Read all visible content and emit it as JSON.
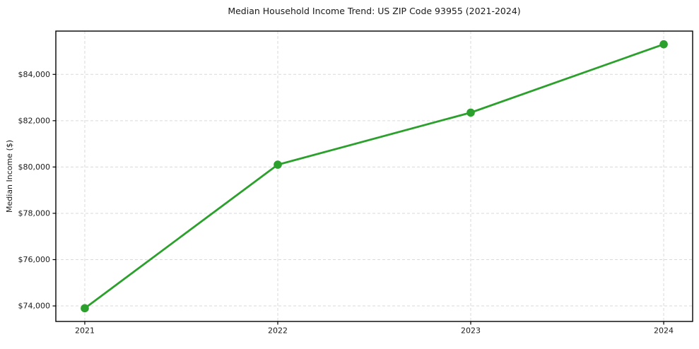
{
  "chart_data": {
    "type": "line",
    "title": "Median Household Income Trend: US ZIP Code 93955 (2021-2024)",
    "ylabel": "Median Income ($)",
    "xlabel": "",
    "categories": [
      2021,
      2022,
      2023,
      2024
    ],
    "x_tick_labels": [
      "2021",
      "2022",
      "2023",
      "2024"
    ],
    "values": [
      73900,
      80100,
      82350,
      85300
    ],
    "y_ticks": [
      74000,
      76000,
      78000,
      80000,
      82000,
      84000
    ],
    "y_tick_labels": [
      "$74,000",
      "$76,000",
      "$78,000",
      "$80,000",
      "$82,000",
      "$84,000"
    ],
    "xlim": [
      2020.85,
      2024.15
    ],
    "ylim": [
      73330,
      85870
    ],
    "grid": true,
    "legend": false,
    "marker": "circle",
    "colors": {
      "line": "#2ca02c",
      "marker": "#2ca02c",
      "grid": "#d9d9d9",
      "spine": "#000000",
      "text": "#1a1a1a",
      "background": "#ffffff"
    }
  }
}
